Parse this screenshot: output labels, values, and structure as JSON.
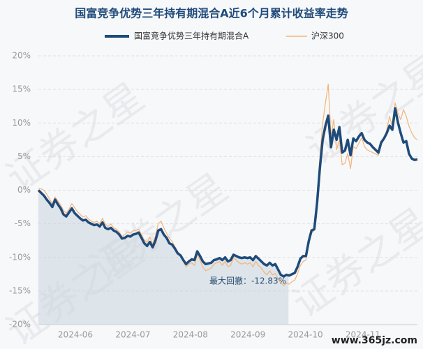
{
  "chart_data": {
    "type": "line",
    "title": "国富竞争优势三年持有期混合A近6个月累计收益率走势",
    "x_labels": [
      "2024-06",
      "2024-07",
      "2024-08",
      "2024-09",
      "2024-10",
      "2024-11"
    ],
    "ylim": [
      -20,
      20
    ],
    "yticks": [
      {
        "value": -20,
        "label": "-20%"
      },
      {
        "value": -15,
        "label": "-15%"
      },
      {
        "value": -10,
        "label": "-10%"
      },
      {
        "value": -5,
        "label": "-5%"
      },
      {
        "value": 0,
        "label": "0%"
      },
      {
        "value": 5,
        "label": "5%"
      },
      {
        "value": 10,
        "label": "10%"
      },
      {
        "value": 15,
        "label": "15%"
      },
      {
        "value": 20,
        "label": "20%"
      }
    ],
    "grid": true,
    "annotation": "最大回撤：-12.83%",
    "watermark": "证券之星",
    "watermark_url": "www.365jz.com",
    "series": [
      {
        "name": "国富竞争优势三年持有期混合A",
        "color": "#1f4b7a",
        "values": [
          0,
          -0.4,
          -0.8,
          -1.4,
          -1.9,
          -2.5,
          -1.4,
          -2.1,
          -2.7,
          -3.6,
          -3.9,
          -3.3,
          -2.7,
          -3.4,
          -3.8,
          -4.2,
          -4.5,
          -4.4,
          -4.8,
          -5.0,
          -5.2,
          -5.1,
          -5.4,
          -4.8,
          -5.6,
          -5.8,
          -5.6,
          -6.0,
          -6.2,
          -6.6,
          -7.2,
          -7.1,
          -6.8,
          -6.9,
          -6.6,
          -6.5,
          -6.3,
          -7.1,
          -7.9,
          -8.3,
          -7.7,
          -8.5,
          -7.5,
          -6.0,
          -5.8,
          -6.6,
          -7.1,
          -7.9,
          -8.1,
          -8.7,
          -9.4,
          -9.7,
          -10.4,
          -11.0,
          -10.6,
          -10.3,
          -10.4,
          -9.1,
          -9.8,
          -10.6,
          -11.0,
          -10.9,
          -10.8,
          -10.4,
          -10.3,
          -10.1,
          -10.4,
          -10.0,
          -10.6,
          -10.4,
          -9.6,
          -9.8,
          -10.0,
          -10.1,
          -10.0,
          -10.1,
          -10.0,
          -10.4,
          -9.8,
          -10.2,
          -10.6,
          -11.0,
          -11.2,
          -10.8,
          -11.2,
          -11.0,
          -11.8,
          -12.6,
          -12.83,
          -12.6,
          -12.7,
          -12.5,
          -12.3,
          -11.4,
          -10.2,
          -9.8,
          -9.8,
          -7.6,
          -6.0,
          -5.8,
          -1.9,
          3.3,
          7.5,
          9.6,
          11.1,
          6.4,
          9.0,
          7.5,
          9.4,
          5.6,
          5.9,
          7.5,
          5.2,
          7.7,
          7.3,
          8.0,
          8.5,
          7.5,
          7.1,
          6.9,
          6.4,
          6.0,
          5.6,
          7.1,
          7.7,
          8.5,
          9.6,
          9.0,
          12.2,
          10.1,
          8.5,
          7.1,
          7.3,
          5.4,
          4.7,
          4.5,
          4.6
        ]
      },
      {
        "name": "沪深300",
        "color": "#f3b47a",
        "values": [
          0.3,
          0.2,
          0,
          -0.6,
          -1.3,
          -2.0,
          -1.0,
          -1.6,
          -2.2,
          -3.0,
          -3.4,
          -2.8,
          -2.0,
          -2.6,
          -3.2,
          -3.6,
          -4.0,
          -3.8,
          -4.3,
          -4.6,
          -4.8,
          -4.6,
          -5.0,
          -4.2,
          -5.0,
          -5.4,
          -5.0,
          -5.6,
          -5.8,
          -6.2,
          -6.9,
          -6.6,
          -6.2,
          -6.4,
          -6.0,
          -6.0,
          -5.8,
          -6.6,
          -7.4,
          -7.8,
          -7.0,
          -8.0,
          -6.8,
          -5.0,
          -4.6,
          -5.6,
          -6.4,
          -7.2,
          -7.6,
          -8.4,
          -9.2,
          -9.8,
          -10.6,
          -11.4,
          -11.0,
          -10.8,
          -11.2,
          -9.6,
          -10.4,
          -11.4,
          -12.0,
          -11.8,
          -11.6,
          -11.0,
          -10.8,
          -10.6,
          -11.2,
          -10.6,
          -11.4,
          -11.2,
          -10.0,
          -10.4,
          -10.8,
          -11.0,
          -10.8,
          -11.0,
          -10.8,
          -11.4,
          -10.6,
          -11.2,
          -11.6,
          -12.2,
          -12.6,
          -12.0,
          -12.6,
          -12.4,
          -13.2,
          -13.8,
          -14.2,
          -13.8,
          -14.0,
          -13.6,
          -13.4,
          -12.4,
          -11.2,
          -10.6,
          -10.4,
          -8.0,
          -6.4,
          -6.0,
          -1.0,
          5.0,
          10.0,
          13.0,
          15.8,
          8.0,
          10.5,
          6.0,
          7.5,
          3.8,
          4.0,
          5.5,
          3.2,
          6.5,
          6.2,
          7.0,
          7.8,
          6.5,
          6.0,
          5.8,
          5.6,
          5.4,
          5.2,
          6.8,
          7.5,
          9.0,
          11.0,
          9.5,
          13.0,
          11.5,
          10.5,
          12.0,
          11.0,
          9.5,
          8.5,
          7.8,
          7.5
        ]
      }
    ]
  }
}
